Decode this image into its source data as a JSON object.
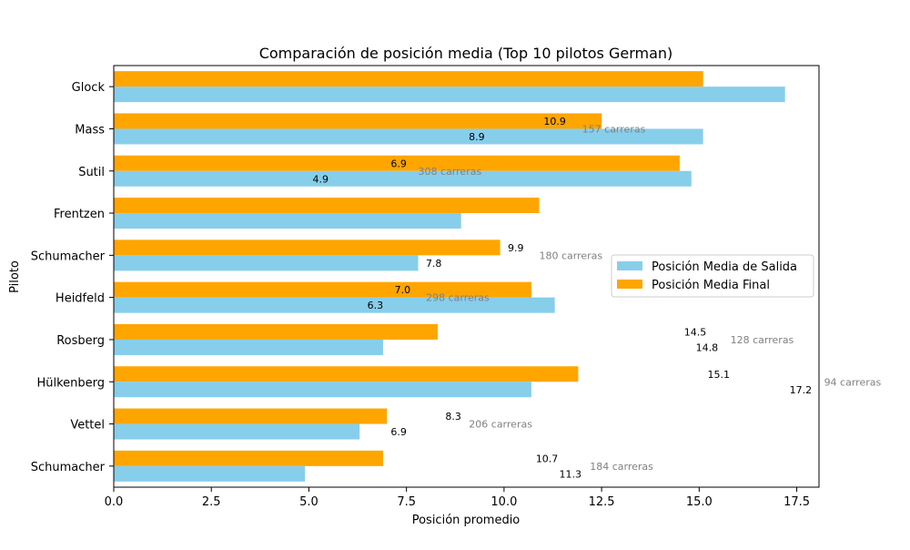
{
  "chart_data": {
    "type": "bar",
    "orientation": "horizontal",
    "title": "Comparación de posición media (Top 10 pilotos German)",
    "xlabel": "Posición promedio",
    "ylabel": "Piloto",
    "xlim": [
      0,
      18.07
    ],
    "xticks": [
      "0.0",
      "2.5",
      "5.0",
      "7.5",
      "10.0",
      "12.5",
      "15.0",
      "17.5"
    ],
    "grid": false,
    "legend_position": "center-right",
    "categories": [
      "Glock",
      "Mass",
      "Sutil",
      "Frentzen",
      "Schumacher",
      "Heidfeld",
      "Rosberg",
      "Hülkenberg",
      "Vettel",
      "Schumacher"
    ],
    "series": [
      {
        "name": "Posición Media de Salida",
        "color": "#87CEEB",
        "values": [
          17.2,
          15.1,
          14.8,
          8.9,
          7.8,
          11.3,
          6.9,
          10.7,
          6.3,
          4.9
        ]
      },
      {
        "name": "Posición Media Final",
        "color": "#FFA500",
        "values": [
          15.1,
          12.5,
          14.5,
          10.9,
          9.9,
          10.7,
          8.3,
          11.9,
          7.0,
          6.9
        ]
      }
    ],
    "annotations": {
      "salida_labels": [
        {
          "text": "17.2",
          "x": 17.2,
          "row": 7
        },
        {
          "text": "8.9",
          "x": 9.3,
          "row": 1
        },
        {
          "text": "4.9",
          "x": 5.3,
          "row": 2
        },
        {
          "text": "11.3",
          "x": 11.7,
          "row": 9
        },
        {
          "text": "7.8",
          "x": 8.2,
          "row": 4
        },
        {
          "text": "6.3",
          "x": 6.7,
          "row": 5
        },
        {
          "text": "14.8",
          "x": 15.2,
          "row": 6
        },
        {
          "text": "10.7",
          "x": 11.1,
          "row": 9
        },
        {
          "text": "6.9",
          "x": 7.3,
          "row": 8
        },
        {
          "text": "4.9",
          "x": 5.3,
          "row": 2
        }
      ],
      "labels": [
        {
          "text": "10.9",
          "x": 11.3,
          "row": 1,
          "bar": "final"
        },
        {
          "text": "8.9",
          "x": 9.3,
          "row": 1,
          "bar": "salida"
        },
        {
          "text": "6.9",
          "x": 7.3,
          "row": 2,
          "bar": "final"
        },
        {
          "text": "4.9",
          "x": 5.3,
          "row": 2,
          "bar": "salida"
        },
        {
          "text": "9.9",
          "x": 10.3,
          "row": 4,
          "bar": "final"
        },
        {
          "text": "7.8",
          "x": 8.2,
          "row": 4,
          "bar": "salida"
        },
        {
          "text": "7.0",
          "x": 7.4,
          "row": 5,
          "bar": "final"
        },
        {
          "text": "6.3",
          "x": 6.7,
          "row": 5,
          "bar": "salida"
        },
        {
          "text": "14.5",
          "x": 14.9,
          "row": 6,
          "bar": "final"
        },
        {
          "text": "14.8",
          "x": 15.2,
          "row": 6,
          "bar": "salida"
        },
        {
          "text": "15.1",
          "x": 15.5,
          "row": 7,
          "bar": "final"
        },
        {
          "text": "17.2",
          "x": 17.6,
          "row": 7,
          "bar": "salida"
        },
        {
          "text": "8.3",
          "x": 8.7,
          "row": 8,
          "bar": "final"
        },
        {
          "text": "6.9",
          "x": 7.3,
          "row": 8,
          "bar": "salida"
        },
        {
          "text": "10.7",
          "x": 11.1,
          "row": 9,
          "bar": "final"
        },
        {
          "text": "11.3",
          "x": 11.7,
          "row": 9,
          "bar": "salida"
        }
      ],
      "race_counts": [
        {
          "text": "157 carreras",
          "x": 12.0,
          "row": 1
        },
        {
          "text": "308 carreras",
          "x": 7.8,
          "row": 2
        },
        {
          "text": "180 carreras",
          "x": 10.9,
          "row": 4
        },
        {
          "text": "298 carreras",
          "x": 8.0,
          "row": 5
        },
        {
          "text": "128 carreras",
          "x": 15.8,
          "row": 6
        },
        {
          "text": "94 carreras",
          "x": 18.2,
          "row": 7
        },
        {
          "text": "206 carreras",
          "x": 9.1,
          "row": 8
        },
        {
          "text": "184 carreras",
          "x": 12.2,
          "row": 9
        }
      ]
    }
  }
}
